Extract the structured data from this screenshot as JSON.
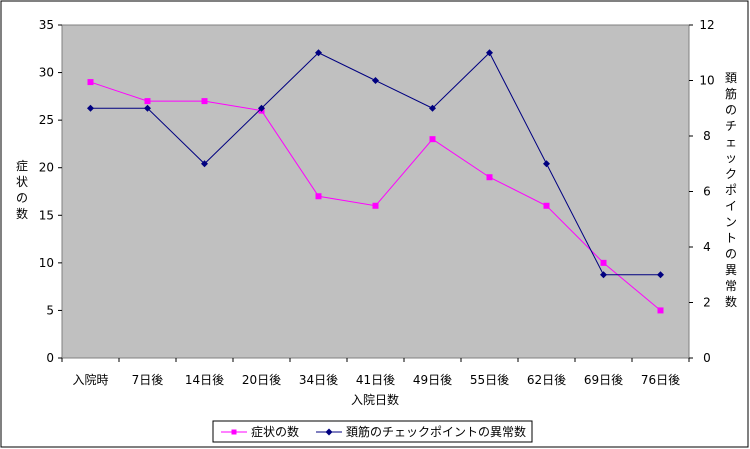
{
  "chart_data": {
    "type": "line",
    "categories": [
      "入院時",
      "7日後",
      "14日後",
      "20日後",
      "34日後",
      "41日後",
      "49日後",
      "55日後",
      "62日後",
      "69日後",
      "76日後"
    ],
    "xlabel": "入院日数",
    "y_left": {
      "label": "症状の数",
      "ylim": [
        0,
        35
      ],
      "ticks": [
        0,
        5,
        10,
        15,
        20,
        25,
        30,
        35
      ]
    },
    "y_right": {
      "label": "頚筋のチェックポイントの異常数",
      "ylim": [
        0,
        12
      ],
      "ticks": [
        0,
        2,
        4,
        6,
        8,
        10,
        12
      ]
    },
    "series": [
      {
        "name": "症状の数",
        "axis": "left",
        "color": "#ff00ff",
        "marker": "square",
        "values": [
          29,
          27,
          27,
          26,
          17,
          16,
          23,
          19,
          16,
          10,
          5
        ]
      },
      {
        "name": "頚筋のチェックポイントの異常数",
        "axis": "right",
        "color": "#000080",
        "marker": "diamond",
        "values": [
          9,
          9,
          7,
          9,
          11,
          10,
          9,
          11,
          7,
          3,
          3
        ]
      }
    ],
    "grid": false,
    "legend_position": "bottom",
    "plot_background": "#c0c0c0"
  }
}
